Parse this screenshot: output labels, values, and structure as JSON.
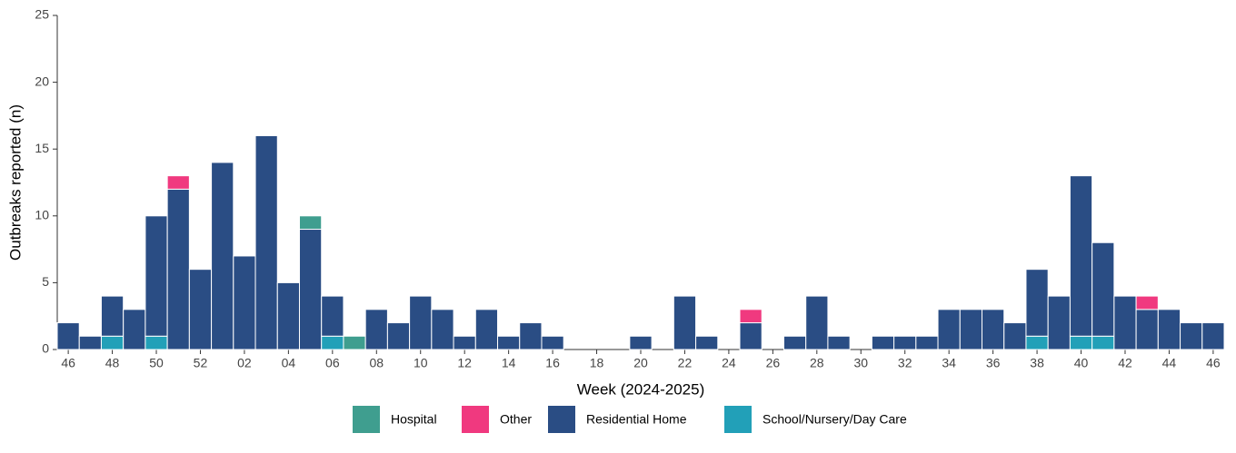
{
  "chart_data": {
    "type": "stacked_bar",
    "y_label": "Outbreaks reported (n)",
    "x_label": "Week (2024-2025)",
    "categories": [
      "46",
      null,
      "48",
      null,
      "50",
      null,
      "52",
      null,
      "02",
      null,
      "04",
      null,
      "06",
      null,
      "08",
      null,
      "10",
      null,
      "12",
      null,
      "14",
      null,
      "16",
      null,
      "18",
      null,
      "20",
      null,
      "22",
      null,
      "24",
      null,
      "26",
      null,
      "28",
      null,
      "30",
      null,
      "32",
      null,
      "34",
      null,
      "36",
      null,
      "38",
      null,
      "40",
      null,
      "42",
      null,
      "44",
      null,
      "46"
    ],
    "series": [
      {
        "name": "Hospital",
        "color": "#3f9e8f",
        "values": [
          0,
          0,
          0,
          0,
          0,
          0,
          0,
          0,
          0,
          0,
          0,
          1,
          0,
          1,
          0,
          0,
          0,
          0,
          0,
          0,
          0,
          0,
          0,
          0,
          0,
          0,
          0,
          0,
          0,
          0,
          0,
          0,
          0,
          0,
          0,
          0,
          0,
          0,
          0,
          0,
          0,
          0,
          0,
          0,
          0,
          0,
          0,
          0,
          0,
          0,
          0,
          0,
          0
        ]
      },
      {
        "name": "Other",
        "color": "#f0397f",
        "values": [
          0,
          0,
          0,
          0,
          0,
          1,
          0,
          0,
          0,
          0,
          0,
          0,
          0,
          0,
          0,
          0,
          0,
          0,
          0,
          0,
          0,
          0,
          0,
          0,
          0,
          0,
          0,
          0,
          0,
          0,
          0,
          1,
          0,
          0,
          0,
          0,
          0,
          0,
          0,
          0,
          0,
          0,
          0,
          0,
          0,
          0,
          0,
          0,
          0,
          1,
          0,
          0,
          0
        ]
      },
      {
        "name": "Residential Home",
        "color": "#2a4d84",
        "values": [
          2,
          1,
          3,
          3,
          9,
          12,
          6,
          14,
          7,
          16,
          5,
          9,
          3,
          0,
          3,
          2,
          4,
          3,
          1,
          3,
          1,
          2,
          1,
          0,
          0,
          0,
          1,
          0,
          4,
          1,
          0,
          2,
          0,
          1,
          4,
          1,
          0,
          1,
          1,
          1,
          3,
          3,
          3,
          2,
          5,
          4,
          12,
          7,
          4,
          3,
          3,
          2,
          2
        ]
      },
      {
        "name": "School/Nursery/Day Care",
        "color": "#22a0b8",
        "values": [
          0,
          0,
          1,
          0,
          1,
          0,
          0,
          0,
          0,
          0,
          0,
          0,
          1,
          0,
          0,
          0,
          0,
          0,
          0,
          0,
          0,
          0,
          0,
          0,
          0,
          0,
          0,
          0,
          0,
          0,
          0,
          0,
          0,
          0,
          0,
          0,
          0,
          0,
          0,
          0,
          0,
          0,
          0,
          0,
          1,
          0,
          1,
          1,
          0,
          0,
          0,
          0,
          0
        ]
      }
    ],
    "ylim": [
      0,
      25
    ],
    "yticks": [
      0,
      5,
      10,
      15,
      20,
      25
    ]
  }
}
